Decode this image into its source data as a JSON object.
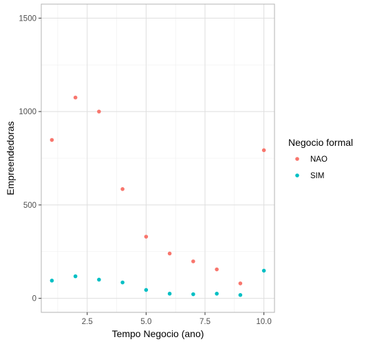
{
  "chart_data": {
    "type": "scatter",
    "title": "",
    "xlabel": "Tempo Negocio (ano)",
    "ylabel": "Empreendedoras",
    "xlim": [
      0.55,
      10.45
    ],
    "ylim": [
      -75,
      1575
    ],
    "x_ticks": [
      2.5,
      5.0,
      7.5,
      10.0
    ],
    "x_tick_labels": [
      "2.5",
      "5.0",
      "7.5",
      "10.0"
    ],
    "y_ticks": [
      0,
      500,
      1000,
      1500
    ],
    "y_tick_labels": [
      "0",
      "500",
      "1000",
      "1500"
    ],
    "grid": true,
    "legend": {
      "title": "Negocio formal",
      "placement": "right"
    },
    "x": [
      1,
      2,
      3,
      4,
      5,
      6,
      7,
      8,
      9,
      10
    ],
    "series": [
      {
        "name": "NAO",
        "color": "#F8766D",
        "values": [
          848,
          1075,
          1000,
          585,
          330,
          240,
          198,
          155,
          80,
          793
        ]
      },
      {
        "name": "SIM",
        "color": "#00BFC4",
        "values": [
          95,
          118,
          100,
          85,
          45,
          25,
          22,
          25,
          18,
          148
        ]
      }
    ]
  }
}
